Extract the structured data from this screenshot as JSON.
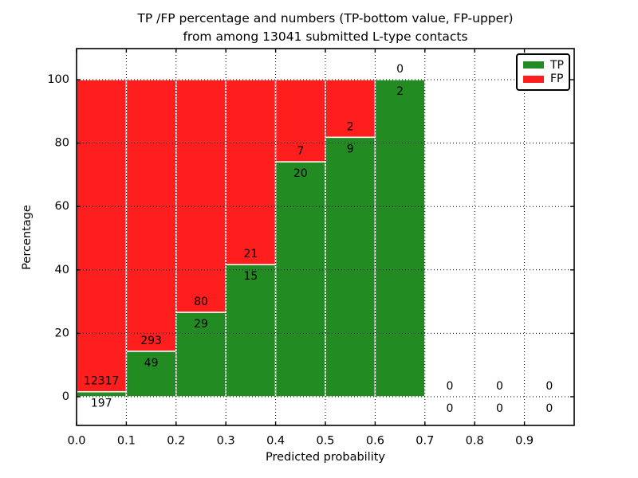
{
  "chart_data": {
    "type": "bar",
    "stacked": true,
    "units": "percent",
    "title_line1": "TP /FP percentage and numbers (TP-bottom value, FP-upper)",
    "title_line2": "from among 13041 submitted L-type contacts",
    "xlabel": "Predicted probability",
    "ylabel": "Percentage",
    "total_submitted": 13041,
    "bins": [
      {
        "x_start": 0.0,
        "x_end": 0.1,
        "tp": 197,
        "fp": 12317,
        "tp_percent": 1.6
      },
      {
        "x_start": 0.1,
        "x_end": 0.2,
        "tp": 49,
        "fp": 293,
        "tp_percent": 14.3
      },
      {
        "x_start": 0.2,
        "x_end": 0.3,
        "tp": 29,
        "fp": 80,
        "tp_percent": 26.6
      },
      {
        "x_start": 0.3,
        "x_end": 0.4,
        "tp": 15,
        "fp": 21,
        "tp_percent": 41.7
      },
      {
        "x_start": 0.4,
        "x_end": 0.5,
        "tp": 20,
        "fp": 7,
        "tp_percent": 74.1
      },
      {
        "x_start": 0.5,
        "x_end": 0.6,
        "tp": 9,
        "fp": 2,
        "tp_percent": 81.8
      },
      {
        "x_start": 0.6,
        "x_end": 0.7,
        "tp": 2,
        "fp": 0,
        "tp_percent": 100.0
      },
      {
        "x_start": 0.7,
        "x_end": 0.8,
        "tp": 0,
        "fp": 0,
        "tp_percent": 0.0
      },
      {
        "x_start": 0.8,
        "x_end": 0.9,
        "tp": 0,
        "fp": 0,
        "tp_percent": 0.0
      },
      {
        "x_start": 0.9,
        "x_end": 1.0,
        "tp": 0,
        "fp": 0,
        "tp_percent": 0.0
      }
    ],
    "x_ticks": [
      "0.0",
      "0.1",
      "0.2",
      "0.3",
      "0.4",
      "0.5",
      "0.6",
      "0.7",
      "0.8",
      "0.9"
    ],
    "y_ticks": [
      "0",
      "20",
      "40",
      "60",
      "80",
      "100"
    ],
    "xlim": [
      0.0,
      1.0
    ],
    "ylim": [
      0,
      100
    ],
    "grid": "dotted",
    "legend": {
      "position": "upper right",
      "entries": [
        {
          "label": "TP",
          "color": "#228B22"
        },
        {
          "label": "FP",
          "color": "#FF1E1E"
        }
      ]
    },
    "colors": {
      "tp": "#228B22",
      "fp": "#FF1E1E",
      "axis": "#000000",
      "grid": "#000000",
      "bar_edge": "#FFFFFF",
      "background": "#FFFFFF"
    }
  }
}
